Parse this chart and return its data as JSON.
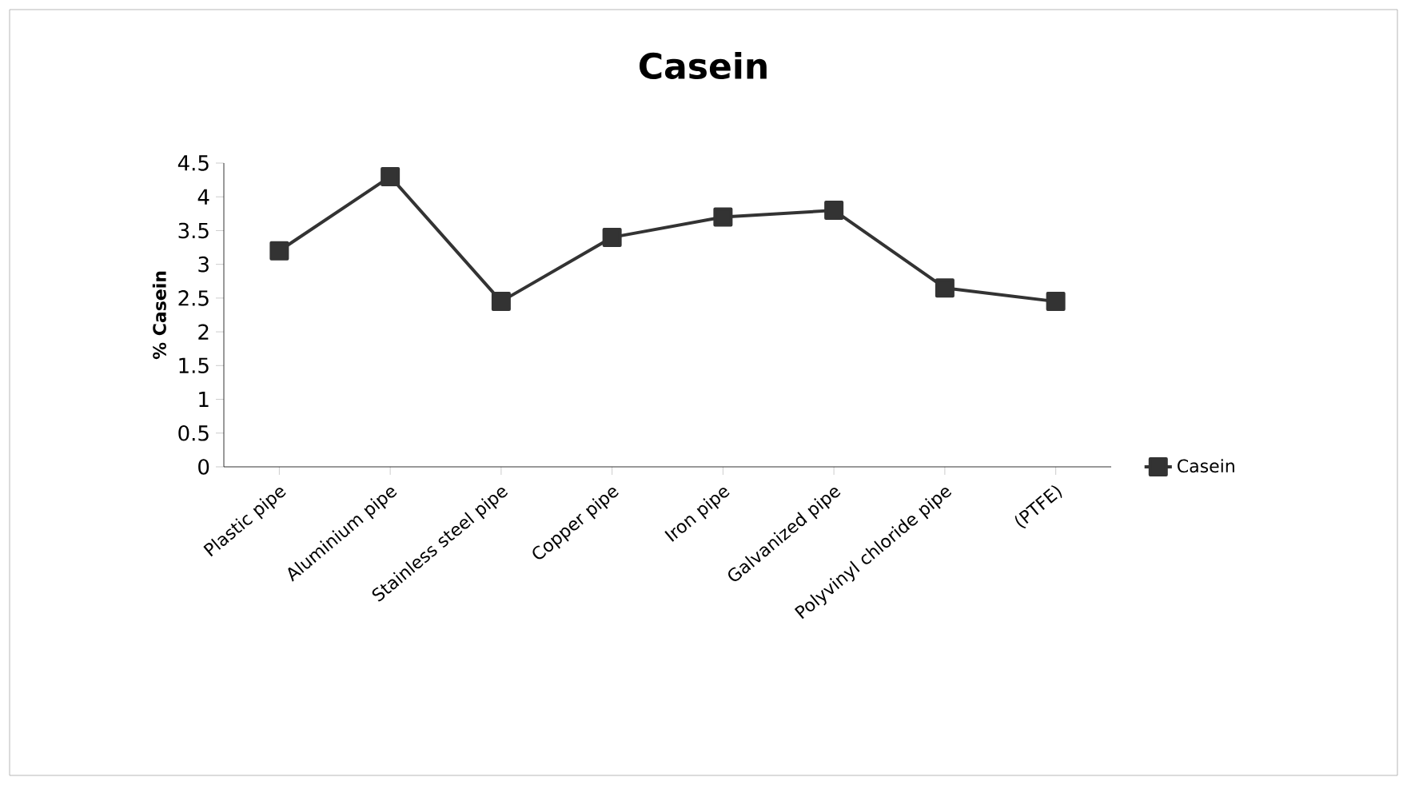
{
  "chart_data": {
    "type": "line",
    "title": "Casein",
    "ylabel": "% Casein",
    "categories": [
      "Plastic pipe",
      "Aluminium pipe",
      "Stainless steel pipe",
      "Copper pipe",
      "Iron pipe",
      "Galvanized pipe",
      "Polyvinyl chloride pipe",
      "(PTFE)"
    ],
    "series": [
      {
        "name": "Casein",
        "color": "#333333",
        "values": [
          3.2,
          4.3,
          2.45,
          3.4,
          3.7,
          3.8,
          2.65,
          2.45
        ]
      }
    ],
    "ylim": [
      0,
      4.5
    ],
    "yticks": [
      0,
      0.5,
      1,
      1.5,
      2,
      2.5,
      3,
      3.5,
      4,
      4.5
    ],
    "grid": false,
    "legend": "right",
    "marker": "square",
    "line_style": "solid"
  }
}
